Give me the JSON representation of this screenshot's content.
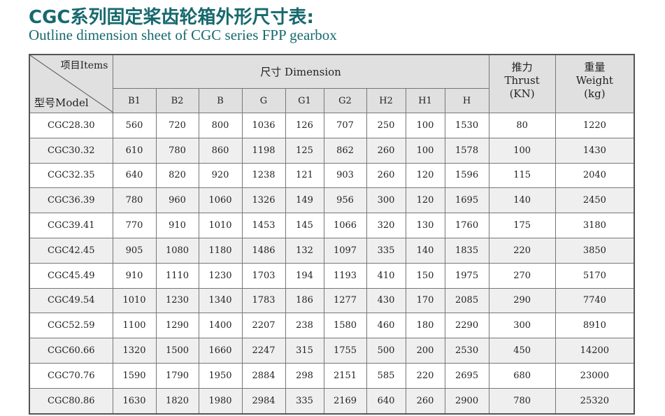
{
  "title": "CGC系列固定桨齿轮箱外形尺寸表:",
  "subtitle": "Outline dimension sheet of CGC series FPP gearbox",
  "header": {
    "items_label": "项目Items",
    "model_label": "型号Model",
    "dimension_label": "尺寸  Dimension",
    "thrust_cn": "推力",
    "thrust_en": "Thrust",
    "thrust_unit": "(KN)",
    "weight_cn": "重量",
    "weight_en": "Weight",
    "weight_unit": "(kg)",
    "columns": [
      "B1",
      "B2",
      "B",
      "G",
      "G1",
      "G2",
      "H2",
      "H1",
      "H"
    ]
  },
  "rows": [
    [
      "CGC28.30",
      "560",
      "720",
      "800",
      "1036",
      "126",
      "707",
      "250",
      "100",
      "1530",
      "80",
      "1220"
    ],
    [
      "CGC30.32",
      "610",
      "780",
      "860",
      "1198",
      "125",
      "862",
      "260",
      "100",
      "1578",
      "100",
      "1430"
    ],
    [
      "CGC32.35",
      "640",
      "820",
      "920",
      "1238",
      "121",
      "903",
      "260",
      "120",
      "1596",
      "115",
      "2040"
    ],
    [
      "CGC36.39",
      "780",
      "960",
      "1060",
      "1326",
      "149",
      "956",
      "300",
      "120",
      "1695",
      "140",
      "2450"
    ],
    [
      "CGC39.41",
      "770",
      "910",
      "1010",
      "1453",
      "145",
      "1066",
      "320",
      "130",
      "1760",
      "175",
      "3180"
    ],
    [
      "CGC42.45",
      "905",
      "1080",
      "1180",
      "1486",
      "132",
      "1097",
      "335",
      "140",
      "1835",
      "220",
      "3850"
    ],
    [
      "CGC45.49",
      "910",
      "1110",
      "1230",
      "1703",
      "194",
      "1193",
      "410",
      "150",
      "1975",
      "270",
      "5170"
    ],
    [
      "CGC49.54",
      "1010",
      "1230",
      "1340",
      "1783",
      "186",
      "1277",
      "430",
      "170",
      "2085",
      "290",
      "7740"
    ],
    [
      "CGC52.59",
      "1100",
      "1290",
      "1400",
      "2207",
      "238",
      "1580",
      "460",
      "180",
      "2290",
      "300",
      "8910"
    ],
    [
      "CGC60.66",
      "1320",
      "1500",
      "1660",
      "2247",
      "315",
      "1755",
      "500",
      "200",
      "2530",
      "450",
      "14200"
    ],
    [
      "CGC70.76",
      "1590",
      "1790",
      "1950",
      "2884",
      "298",
      "2151",
      "585",
      "220",
      "2695",
      "680",
      "23000"
    ],
    [
      "CGC80.86",
      "1630",
      "1820",
      "1980",
      "2984",
      "335",
      "2169",
      "640",
      "260",
      "2900",
      "780",
      "25320"
    ]
  ]
}
